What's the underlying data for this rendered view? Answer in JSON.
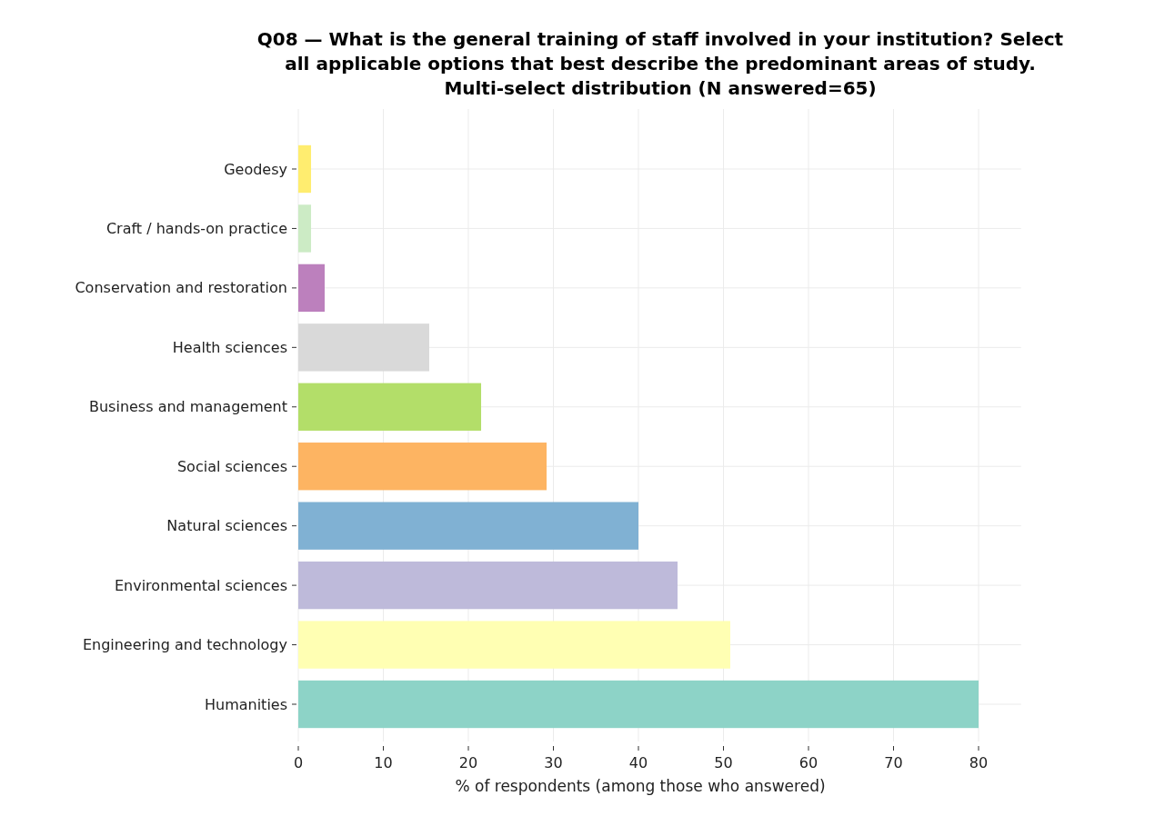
{
  "chart_data": {
    "type": "bar",
    "orientation": "horizontal",
    "title": "Q08 — What is the general training of staff involved in your institution? Select\nall applicable options that best describe the predominant areas of study.\nMulti-select distribution (N answered=65)",
    "xlabel": "% of respondents (among those who answered)",
    "categories": [
      "Geodesy",
      "Craft / hands-on practice",
      "Conservation and restoration",
      "Health sciences",
      "Business and management",
      "Social sciences",
      "Natural sciences",
      "Environmental sciences",
      "Engineering and technology",
      "Humanities"
    ],
    "values": [
      1.5,
      1.5,
      3.1,
      15.4,
      21.5,
      29.2,
      40,
      44.6,
      50.8,
      80
    ],
    "colors": [
      "#ffed6f",
      "#ccebc5",
      "#bc80bd",
      "#d9d9d9",
      "#b3de69",
      "#fdb462",
      "#80b1d3",
      "#bebada",
      "#ffffb3",
      "#8dd3c7"
    ],
    "xlim": [
      0,
      85
    ],
    "xticks": [
      0,
      10,
      20,
      30,
      40,
      50,
      60,
      70,
      80
    ],
    "grid": true
  }
}
